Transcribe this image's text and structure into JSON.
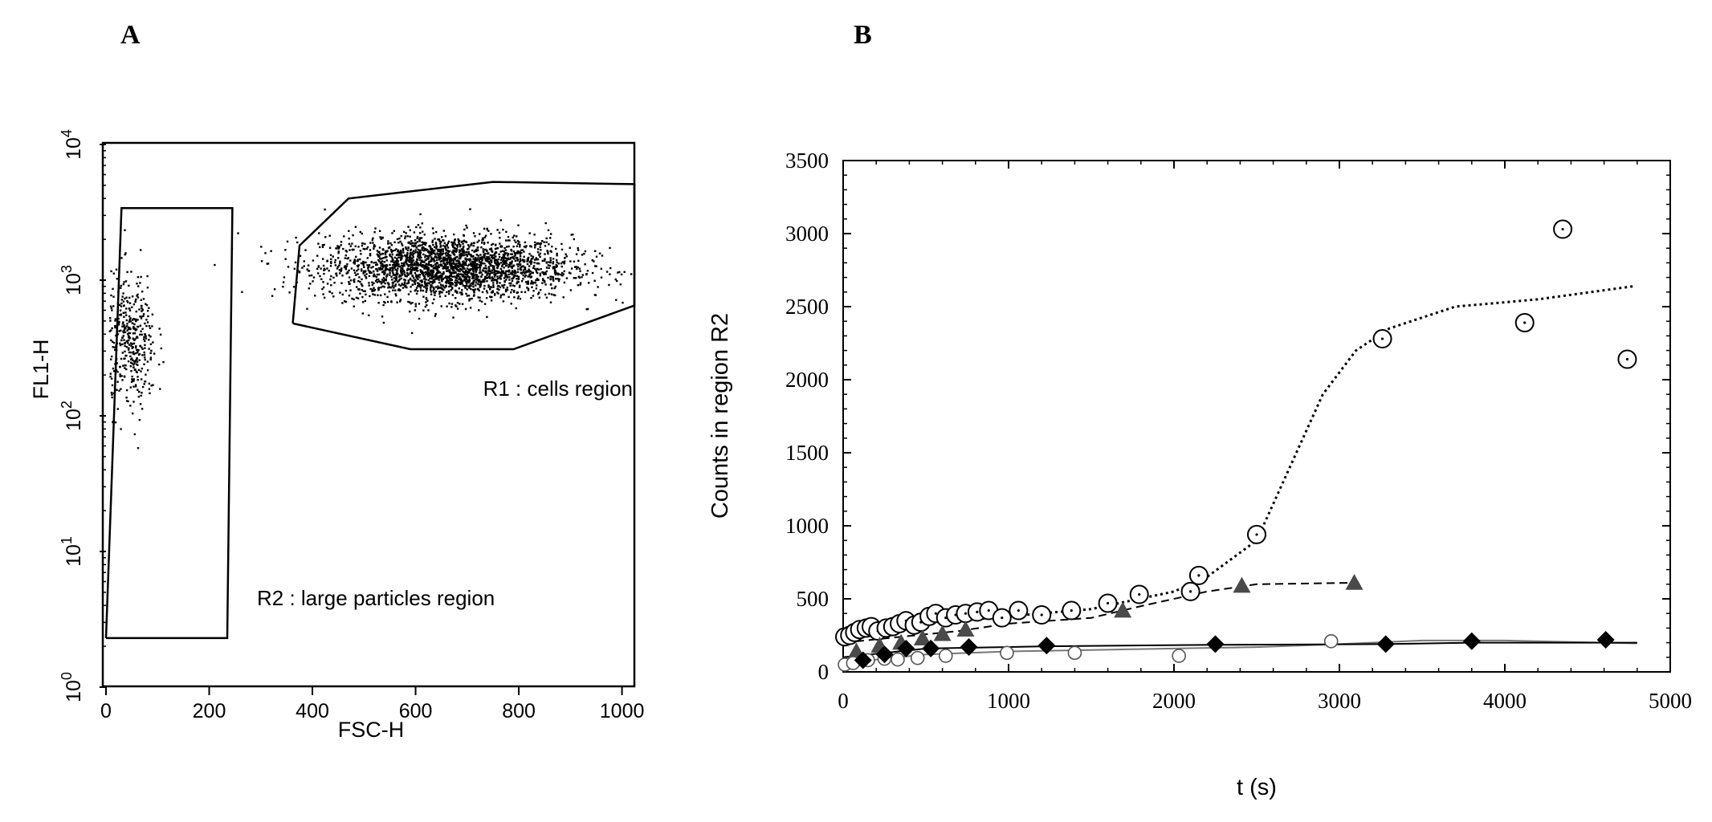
{
  "panels": {
    "a": "A",
    "b": "B"
  },
  "chart_data": [
    {
      "type": "scatter",
      "xlabel": "FSC-H",
      "ylabel": "FL1-H",
      "xlim": [
        0,
        1024
      ],
      "ylim": [
        1,
        10000
      ],
      "y_scale": "log",
      "x_ticks": [
        "0",
        "200",
        "400",
        "600",
        "800",
        "1000"
      ],
      "y_ticks": [
        {
          "base": "10",
          "exp": "0"
        },
        {
          "base": "10",
          "exp": "1"
        },
        {
          "base": "10",
          "exp": "2"
        },
        {
          "base": "10",
          "exp": "3"
        },
        {
          "base": "10",
          "exp": "4"
        }
      ],
      "regions": [
        {
          "name": "R1",
          "label": "R1  :  cells region",
          "polygon": [
            [
              362,
              480
            ],
            [
              375,
              1800
            ],
            [
              470,
              4000
            ],
            [
              750,
              5300
            ],
            [
              1024,
              5100
            ],
            [
              1024,
              650
            ],
            [
              790,
              310
            ],
            [
              590,
              310
            ],
            [
              362,
              480
            ]
          ]
        },
        {
          "name": "R2",
          "label": "R2  :  large particles region",
          "polygon": [
            [
              0,
              2.3
            ],
            [
              30,
              3400
            ],
            [
              245,
              3400
            ],
            [
              235,
              2.3
            ],
            [
              0,
              2.3
            ]
          ]
        }
      ],
      "populations": [
        {
          "name": "cells",
          "n": 2600,
          "x_center": 660,
          "x_sd": 120,
          "y_center_log10": 3.1,
          "y_sd_log10": 0.12
        },
        {
          "name": "large particles",
          "n": 420,
          "x_center": 45,
          "x_sd": 25,
          "y_center_log10": 2.55,
          "y_sd_log10": 0.25
        }
      ]
    },
    {
      "type": "line",
      "xlabel": "t (s)",
      "ylabel": "Counts in region R2",
      "xlim": [
        0,
        5000
      ],
      "ylim": [
        0,
        3500
      ],
      "x_ticks": [
        "0",
        "1000",
        "2000",
        "3000",
        "4000",
        "5000"
      ],
      "y_ticks": [
        "0",
        "500",
        "1000",
        "1500",
        "2000",
        "2500",
        "3000",
        "3500"
      ],
      "series": [
        {
          "marker": "dotted-circle",
          "line": "dotted",
          "points": [
            [
              10,
              240
            ],
            [
              40,
              250
            ],
            [
              70,
              270
            ],
            [
              100,
              290
            ],
            [
              140,
              300
            ],
            [
              170,
              310
            ],
            [
              210,
              280
            ],
            [
              260,
              300
            ],
            [
              300,
              310
            ],
            [
              340,
              330
            ],
            [
              380,
              350
            ],
            [
              430,
              320
            ],
            [
              470,
              340
            ],
            [
              520,
              380
            ],
            [
              560,
              400
            ],
            [
              620,
              370
            ],
            [
              680,
              390
            ],
            [
              740,
              400
            ],
            [
              810,
              410
            ],
            [
              880,
              420
            ],
            [
              960,
              370
            ],
            [
              1060,
              420
            ],
            [
              1200,
              390
            ],
            [
              1380,
              420
            ],
            [
              1600,
              470
            ],
            [
              1790,
              530
            ],
            [
              2100,
              550
            ],
            [
              2150,
              660
            ],
            [
              2500,
              940
            ],
            [
              3260,
              2280
            ],
            [
              4120,
              2390
            ],
            [
              4350,
              3030
            ],
            [
              4740,
              2140
            ]
          ],
          "line_points": [
            [
              0,
              240
            ],
            [
              500,
              330
            ],
            [
              1000,
              380
            ],
            [
              1500,
              430
            ],
            [
              2000,
              550
            ],
            [
              2200,
              650
            ],
            [
              2500,
              900
            ],
            [
              2700,
              1400
            ],
            [
              2900,
              1900
            ],
            [
              3100,
              2200
            ],
            [
              3300,
              2350
            ],
            [
              3700,
              2500
            ],
            [
              4200,
              2550
            ],
            [
              4780,
              2640
            ]
          ]
        },
        {
          "marker": "filled-triangle",
          "line": "dashed",
          "points": [
            [
              80,
              140
            ],
            [
              220,
              180
            ],
            [
              350,
              200
            ],
            [
              480,
              230
            ],
            [
              600,
              260
            ],
            [
              740,
              290
            ],
            [
              1690,
              420
            ],
            [
              2410,
              590
            ],
            [
              3090,
              610
            ]
          ],
          "line_points": [
            [
              0,
              200
            ],
            [
              700,
              280
            ],
            [
              1000,
              330
            ],
            [
              1500,
              370
            ],
            [
              1800,
              450
            ],
            [
              2200,
              550
            ],
            [
              2500,
              600
            ],
            [
              3090,
              610
            ]
          ]
        },
        {
          "marker": "open-circle",
          "line": "solid-gray",
          "points": [
            [
              10,
              50
            ],
            [
              60,
              60
            ],
            [
              150,
              80
            ],
            [
              250,
              90
            ],
            [
              330,
              85
            ],
            [
              450,
              95
            ],
            [
              620,
              110
            ],
            [
              990,
              130
            ],
            [
              1400,
              130
            ],
            [
              2030,
              110
            ],
            [
              2950,
              210
            ]
          ],
          "line_points": [
            [
              0,
              60
            ],
            [
              500,
              120
            ],
            [
              1000,
              140
            ],
            [
              1500,
              150
            ],
            [
              2000,
              160
            ],
            [
              2500,
              170
            ],
            [
              3000,
              190
            ],
            [
              3500,
              215
            ],
            [
              4000,
              215
            ],
            [
              4800,
              195
            ]
          ]
        },
        {
          "marker": "filled-diamond",
          "line": "solid",
          "points": [
            [
              120,
              80
            ],
            [
              250,
              120
            ],
            [
              380,
              160
            ],
            [
              530,
              160
            ],
            [
              760,
              170
            ],
            [
              1230,
              180
            ],
            [
              2250,
              190
            ],
            [
              3280,
              190
            ],
            [
              3800,
              210
            ],
            [
              4610,
              220
            ]
          ],
          "line_points": [
            [
              0,
              100
            ],
            [
              500,
              160
            ],
            [
              1230,
              175
            ],
            [
              2250,
              185
            ],
            [
              3280,
              190
            ],
            [
              3800,
              200
            ],
            [
              4800,
              200
            ]
          ]
        }
      ]
    }
  ]
}
